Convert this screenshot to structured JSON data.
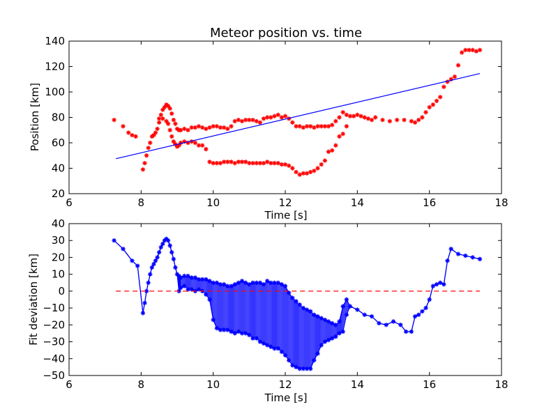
{
  "chart_data": [
    {
      "type": "scatter",
      "title": "Meteor position vs. time",
      "xlabel": "Time [s]",
      "ylabel": "Position [km]",
      "xlim": [
        6,
        18
      ],
      "ylim": [
        20,
        140
      ],
      "xticks": [
        "6",
        "8",
        "10",
        "12",
        "14",
        "16",
        "18"
      ],
      "yticks": [
        "20",
        "40",
        "60",
        "80",
        "100",
        "120",
        "140"
      ],
      "grid": false,
      "colors": {
        "points": "#ff0000",
        "fit": "#0000ff"
      },
      "series": [
        {
          "kind": "points",
          "x": [
            7.25,
            7.5,
            7.65,
            7.75,
            7.85,
            8.05,
            8.1,
            8.15,
            8.2,
            8.25,
            8.3,
            8.35,
            8.4,
            8.45,
            8.5,
            8.55,
            8.6,
            8.65,
            8.7,
            8.75,
            8.8,
            8.85,
            8.9,
            8.95,
            9.0,
            9.05,
            9.1,
            9.2,
            9.3,
            9.4,
            9.5,
            9.6,
            9.7,
            9.8,
            9.9,
            10.0,
            10.1,
            10.2,
            10.3,
            10.4,
            10.5,
            10.6,
            10.7,
            10.8,
            10.9,
            11.0,
            11.1,
            11.2,
            11.3,
            11.4,
            11.5,
            11.6,
            11.7,
            11.8,
            11.9,
            12.0,
            12.1,
            12.2,
            12.3,
            12.4,
            12.5,
            12.6,
            12.7,
            12.8,
            12.9,
            13.0,
            13.1,
            13.2,
            13.3,
            13.4,
            13.5,
            13.6,
            13.7,
            13.8,
            13.9,
            14.0,
            14.1,
            14.2,
            14.3,
            14.4,
            14.5,
            14.7,
            14.9,
            15.1,
            15.3,
            15.5,
            15.6,
            15.7,
            15.8,
            15.9,
            16.0,
            16.1,
            16.2,
            16.3,
            16.4,
            16.5,
            16.6,
            16.7,
            16.8,
            16.9,
            17.0,
            17.1,
            17.2,
            17.3,
            17.4,
            8.5,
            8.6,
            8.7,
            8.75,
            8.8,
            8.85,
            8.9,
            8.95,
            9.0,
            9.05,
            9.1,
            9.2,
            9.3,
            9.4,
            9.5,
            9.6,
            9.7,
            9.8,
            9.9,
            10.0,
            10.1,
            10.2,
            10.3,
            10.4,
            10.5,
            10.6,
            10.7,
            10.8,
            10.9,
            11.0,
            11.1,
            11.2,
            11.3,
            11.4,
            11.5,
            11.6,
            11.7,
            11.8,
            11.9,
            12.0,
            12.1,
            12.2,
            12.3,
            12.4,
            12.5,
            12.6,
            12.7,
            12.8,
            12.9,
            13.0,
            13.1,
            13.2,
            13.3,
            13.4,
            13.5,
            13.6,
            13.7
          ],
          "y": [
            78,
            73,
            68,
            66,
            65,
            39,
            44,
            50,
            56,
            60,
            65,
            66,
            68,
            71,
            76,
            82,
            86,
            88,
            90,
            89,
            87,
            83,
            78,
            75,
            71,
            70,
            70,
            71,
            70,
            72,
            72,
            73,
            72,
            71,
            72,
            73,
            73,
            72,
            72,
            71,
            73,
            77,
            78,
            77,
            78,
            78,
            78,
            77,
            76,
            79,
            80,
            80,
            81,
            82,
            80,
            81,
            79,
            76,
            73,
            73,
            72,
            73,
            73,
            72,
            73,
            73,
            73,
            73,
            74,
            77,
            80,
            84,
            82,
            81,
            81,
            82,
            81,
            80,
            79,
            78,
            80,
            78,
            77,
            78,
            78,
            77,
            76,
            78,
            80,
            84,
            88,
            90,
            93,
            96,
            104,
            108,
            110,
            112,
            121,
            131,
            133,
            133,
            133,
            132,
            133,
            79,
            79,
            77,
            75,
            70,
            65,
            61,
            59,
            57,
            58,
            60,
            61,
            60,
            61,
            60,
            58,
            58,
            55,
            45,
            44,
            44,
            44,
            45,
            45,
            45,
            44,
            45,
            45,
            45,
            44,
            44,
            44,
            44,
            44,
            45,
            44,
            44,
            44,
            43,
            43,
            42,
            40,
            37,
            35,
            36,
            36,
            37,
            38,
            40,
            43,
            46,
            53,
            54,
            58,
            65,
            67,
            73
          ]
        },
        {
          "kind": "line",
          "x": [
            7.3,
            17.4
          ],
          "y": [
            47.5,
            114.5
          ]
        }
      ]
    },
    {
      "type": "line",
      "xlabel": "Time [s]",
      "ylabel": "Fit deviation [km]",
      "xlim": [
        6,
        18
      ],
      "ylim": [
        -50,
        40
      ],
      "xticks": [
        "6",
        "8",
        "10",
        "12",
        "14",
        "16",
        "18"
      ],
      "yticks": [
        "−50",
        "−40",
        "−30",
        "−20",
        "−10",
        "0",
        "10",
        "20",
        "30",
        "40"
      ],
      "grid": false,
      "colors": {
        "series": "#0000ff",
        "zero_line": "#ff0000"
      },
      "zero_line": {
        "x": [
          7.3,
          17.4
        ],
        "y": 0,
        "style": "dashed"
      },
      "series": [
        {
          "x": [
            7.25,
            7.5,
            7.75,
            7.9,
            8.05,
            8.1,
            8.15,
            8.2,
            8.25,
            8.3,
            8.35,
            8.4,
            8.45,
            8.5,
            8.55,
            8.6,
            8.65,
            8.7,
            8.75,
            8.8,
            8.85,
            8.9,
            8.95,
            9.0,
            9.05,
            9.1,
            9.2,
            9.3,
            9.4,
            9.5,
            9.6,
            9.7,
            9.8,
            9.9,
            10.0,
            10.1,
            10.2,
            10.3,
            10.4,
            10.5,
            10.6,
            10.7,
            10.8,
            10.9,
            11.0,
            11.1,
            11.2,
            11.3,
            11.4,
            11.5,
            11.6,
            11.7,
            11.8,
            11.9,
            12.0,
            12.1,
            12.2,
            12.3,
            12.4,
            12.5,
            12.6,
            12.7,
            12.8,
            12.9,
            13.0,
            13.1,
            13.2,
            13.3,
            13.4,
            13.5,
            13.6,
            13.7,
            13.8,
            14.0,
            14.2,
            14.4,
            14.6,
            14.8,
            15.0,
            15.2,
            15.35,
            15.5,
            15.6,
            15.7,
            15.8,
            15.9,
            16.0,
            16.1,
            16.2,
            16.3,
            16.4,
            16.5,
            16.6,
            16.8,
            17.0,
            17.2,
            17.4
          ],
          "upper": [
            30,
            25,
            18,
            15,
            -13,
            -7,
            0,
            5,
            10,
            14,
            16,
            18,
            20,
            23,
            26,
            28,
            30,
            31,
            30,
            27,
            23,
            19,
            14,
            10,
            9,
            8,
            9,
            9,
            8,
            8,
            7,
            7,
            7,
            6,
            5,
            5,
            4,
            4,
            3,
            3,
            4,
            5,
            6,
            5,
            4,
            5,
            5,
            5,
            4,
            6,
            5,
            5,
            5,
            4,
            3,
            -1,
            -4,
            -6,
            -8,
            -10,
            -11,
            -12,
            -14,
            -15,
            -16,
            -17,
            -18,
            -19,
            -20,
            -18,
            -9,
            -5,
            -9,
            -11,
            -14,
            -15,
            -19,
            -20,
            -18,
            -20,
            -24,
            -24,
            -15,
            -14,
            -12,
            -10,
            -5,
            3,
            4,
            5,
            4,
            18,
            25,
            22,
            21,
            20,
            19
          ],
          "lower": [
            30,
            25,
            18,
            15,
            -13,
            -7,
            0,
            5,
            10,
            14,
            16,
            18,
            20,
            23,
            26,
            28,
            30,
            31,
            30,
            27,
            23,
            19,
            14,
            10,
            0,
            2,
            3,
            1,
            1,
            0,
            1,
            0,
            -2,
            -5,
            -17,
            -22,
            -23,
            -23,
            -23,
            -24,
            -25,
            -24,
            -25,
            -25,
            -26,
            -28,
            -28,
            -30,
            -31,
            -32,
            -33,
            -34,
            -34,
            -36,
            -38,
            -41,
            -44,
            -45,
            -46,
            -46,
            -46,
            -46,
            -41,
            -37,
            -32,
            -30,
            -29,
            -28,
            -27,
            -25,
            -24,
            -14,
            -9,
            -11,
            -14,
            -15,
            -19,
            -20,
            -18,
            -20,
            -24,
            -24,
            -15,
            -14,
            -12,
            -10,
            -5,
            3,
            4,
            5,
            4,
            18,
            25,
            22,
            21,
            20,
            19
          ]
        }
      ]
    }
  ]
}
